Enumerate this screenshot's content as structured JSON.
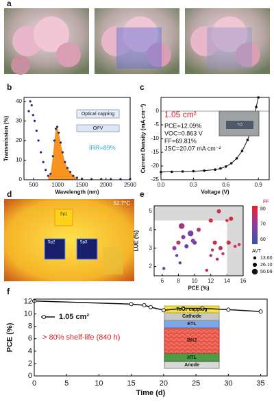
{
  "panel_labels": [
    "a",
    "b",
    "c",
    "d",
    "e",
    "f"
  ],
  "thermal": {
    "max_label": "52.7°C",
    "spots": [
      "Sp1",
      "Sp2",
      "Sp3"
    ]
  },
  "chart_data": [
    {
      "type": "line",
      "xlabel": "Wavelength (nm)",
      "ylabel": "Transmission (%)",
      "x": [
        400,
        430,
        460,
        490,
        520,
        560,
        600,
        650,
        700,
        750,
        800,
        850,
        900,
        930,
        960,
        990,
        1020,
        1060,
        1100,
        1150,
        1200,
        1260,
        1320,
        1400,
        1500,
        1700,
        1900,
        2100,
        2300,
        2500
      ],
      "values": [
        35,
        40,
        38,
        33,
        30,
        25,
        20,
        14,
        9,
        5,
        2,
        3,
        12,
        20,
        26,
        27,
        24,
        19,
        14,
        9,
        6,
        4,
        2,
        1,
        0.5,
        0.3,
        0.3,
        0.3,
        0.3,
        0.3
      ],
      "color": "#1f2a7a",
      "highlight": {
        "color": "#f7931e",
        "from": 800,
        "to": 1400
      },
      "xlim": [
        300,
        2500
      ],
      "xticks": [
        500,
        1000,
        1500,
        2000,
        2500
      ],
      "ylim": [
        0,
        42
      ],
      "yticks": [
        0,
        10,
        20,
        30,
        40
      ],
      "annotations": [
        "Optical capping",
        "OPV",
        "IRR=89%"
      ]
    },
    {
      "type": "line",
      "xlabel": "Voltage (V)",
      "ylabel": "Current Density (mA cm⁻²)",
      "x": [
        0,
        0.1,
        0.2,
        0.3,
        0.4,
        0.5,
        0.55,
        0.6,
        0.65,
        0.7,
        0.75,
        0.8,
        0.83,
        0.86,
        0.88,
        0.9
      ],
      "values": [
        -22.2,
        -22.1,
        -22,
        -21.9,
        -21.7,
        -21.3,
        -20.9,
        -20.2,
        -19,
        -17.2,
        -14.5,
        -10.5,
        -7,
        -2.5,
        1.5,
        5
      ],
      "color": "#111111",
      "xlim": [
        0,
        1
      ],
      "xticks": [
        {
          "value": 0,
          "label": "0.0"
        },
        0.3,
        0.6,
        0.9
      ],
      "ylim": [
        -25,
        5
      ],
      "yticks": [
        0,
        -5,
        -10,
        -15,
        -20,
        -25
      ],
      "annotations": [
        "1.05 cm²",
        "PCE=12.09%",
        "VOC=0.863 V",
        "FF=69.81%",
        "JSC=20.07 mA cm⁻²",
        "TO"
      ]
    },
    {
      "type": "scatter",
      "xlabel": "PCE (%)",
      "ylabel": "LUE (%)",
      "x": [
        6.2,
        7.5,
        7.8,
        8,
        8.2,
        8.4,
        8.6,
        9,
        9.5,
        9.8,
        10,
        10.5,
        11.5,
        12,
        12.2,
        12.5,
        12.8,
        13,
        13.2,
        13.5,
        14,
        14.2,
        14.5,
        15,
        15.5,
        12
      ],
      "values": [
        1.9,
        3,
        2.6,
        3.3,
        2.2,
        4.2,
        3.6,
        3.1,
        3.8,
        3.4,
        3.3,
        4,
        1.8,
        2.6,
        2.9,
        3.3,
        2.4,
        5,
        3,
        2.7,
        4.5,
        3.3,
        4.6,
        3.1,
        3.2,
        4.5
      ],
      "ff": [
        65,
        70,
        62,
        75,
        60,
        72,
        68,
        63,
        66,
        70,
        64,
        74,
        78,
        75,
        77,
        79,
        78,
        78,
        76,
        75,
        80,
        79,
        80,
        78,
        77,
        79
      ],
      "avt": [
        13.6,
        26.1,
        13.6,
        26.1,
        13.6,
        50.09,
        26.1,
        26.1,
        50.09,
        26.1,
        26.1,
        26.1,
        13.6,
        13.6,
        13.6,
        26.1,
        13.6,
        26.1,
        26.1,
        13.6,
        13.6,
        26.1,
        26.1,
        13.6,
        13.6,
        26.1
      ],
      "xlim": [
        5,
        16
      ],
      "xticks": [
        6,
        8,
        10,
        12,
        14,
        16
      ],
      "ylim": [
        1.5,
        5.3
      ],
      "yticks": [
        2,
        3,
        4,
        5
      ],
      "shade": {
        "x_from": 14,
        "y_from": 4.5,
        "color": "#d9d9d9"
      },
      "colorbar_title": "FF",
      "colorbar_lim": [
        57,
        82
      ],
      "colorbar_ticks": [
        60,
        70,
        80
      ],
      "colormap": [
        "#3a53a4",
        "#8b3fa0",
        "#e3262a"
      ],
      "size_title": "AVT",
      "size_ticks": [
        {
          "value": 13.6,
          "label": "13.60"
        },
        {
          "value": 26.1,
          "label": "26.10"
        },
        50.09
      ]
    },
    {
      "type": "line",
      "xlabel": "Time (d)",
      "ylabel": "PCE (%)",
      "x": [
        0,
        15,
        17,
        18,
        20,
        23,
        26,
        30,
        35
      ],
      "series": [
        {
          "name": "1.05 cm²",
          "color": "#111111",
          "values": [
            12.09,
            11.6,
            11.4,
            11.1,
            10.6,
            10.9,
            10.9,
            10.7,
            10.4
          ]
        }
      ],
      "xlim": [
        0,
        36
      ],
      "xticks": [
        0,
        5,
        10,
        15,
        20,
        25,
        30,
        35
      ],
      "ylim": [
        0,
        12.4
      ],
      "yticks": [
        0,
        2,
        4,
        6,
        8,
        10,
        12
      ],
      "annotations": [
        "> 80% shelf-life (840 h)"
      ],
      "stack_labels": [
        "TeO₂ capping",
        "Cathode",
        "ETL",
        "BHJ",
        "HTL",
        "Anode"
      ]
    }
  ]
}
